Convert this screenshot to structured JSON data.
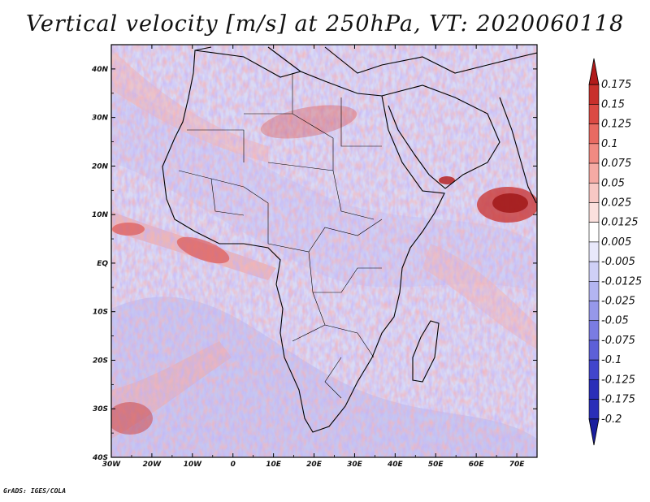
{
  "title": "Vertical velocity [m/s] at 250hPa, VT: 2020060118",
  "footer": "GrADS: IGES/COLA",
  "map": {
    "lon_labels": [
      "30W",
      "20W",
      "10W",
      "0",
      "10E",
      "20E",
      "30E",
      "40E",
      "50E",
      "60E",
      "70E"
    ],
    "lat_labels": [
      "40N",
      "30N",
      "20N",
      "10N",
      "EQ",
      "10S",
      "20S",
      "30S",
      "40S"
    ],
    "lon_range": [
      -30,
      75
    ],
    "lat_range": [
      -40,
      45
    ],
    "colors": {
      "ocean_base": "#d8daf6",
      "land_base": "#e3e3f7",
      "coast": "#000000"
    }
  },
  "colorbar": {
    "labels": [
      "0.175",
      "0.15",
      "0.125",
      "0.1",
      "0.075",
      "0.05",
      "0.025",
      "0.0125",
      "0.005",
      "-0.005",
      "-0.0125",
      "-0.025",
      "-0.05",
      "-0.075",
      "-0.1",
      "-0.125",
      "-0.175",
      "-0.2"
    ],
    "colors": [
      "#b11a1a",
      "#c8302c",
      "#db4a44",
      "#e86a62",
      "#f08a82",
      "#f5aaa4",
      "#f8c8c4",
      "#fbe0dd",
      "#ffffff",
      "#e8e8fb",
      "#cfd0f7",
      "#b3b5f1",
      "#9698ea",
      "#7a7ce2",
      "#5d60d8",
      "#4145cc",
      "#2a2eb8",
      "#1a1e9e"
    ]
  }
}
